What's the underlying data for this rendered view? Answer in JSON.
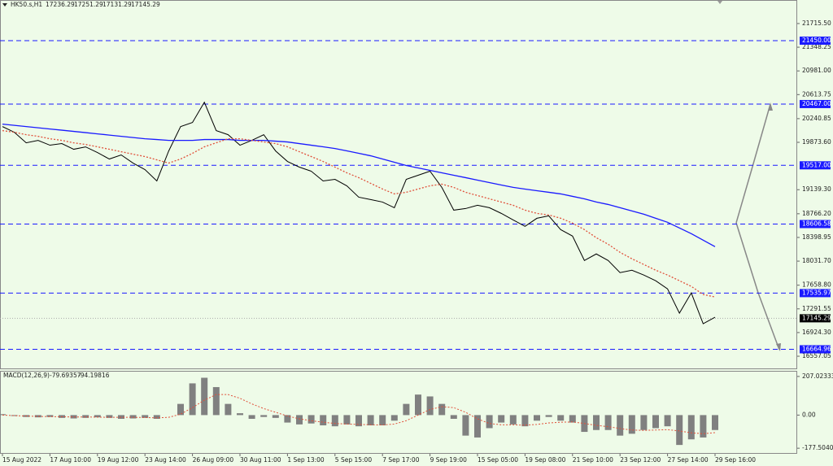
{
  "chart_data": [
    {
      "type": "line",
      "symbol": "HK50.s,H1",
      "ohlc": [
        17236.29,
        17251.29,
        17131.29,
        17145.29
      ],
      "categories": [
        "15 Aug 2022",
        null,
        null,
        null,
        "17 Aug 10:00",
        null,
        null,
        null,
        "19 Aug 12:00",
        null,
        null,
        null,
        "23 Aug 14:00",
        null,
        null,
        null,
        "26 Aug 09:00",
        null,
        null,
        null,
        "30 Aug 11:00",
        null,
        null,
        null,
        "1 Sep 13:00",
        null,
        null,
        null,
        "5 Sep 15:00",
        null,
        null,
        null,
        "7 Sep 17:00",
        null,
        null,
        null,
        "9 Sep 19:00",
        null,
        null,
        null,
        "15 Sep 05:00",
        null,
        null,
        null,
        "19 Sep 08:00",
        null,
        null,
        null,
        "21 Sep 10:00",
        null,
        null,
        null,
        "23 Sep 12:00",
        null,
        null,
        null,
        "27 Sep 14:00",
        null,
        null,
        null,
        "29 Sep 16:00"
      ],
      "series": [
        {
          "color": "#000000",
          "values": [
            20118,
            20030,
            19866,
            19904,
            19829,
            19854,
            19766,
            19803,
            19715,
            19615,
            19678,
            19552,
            19451,
            19275,
            19740,
            20118,
            20181,
            20495,
            20055,
            19992,
            19829,
            19904,
            19992,
            19740,
            19577,
            19489,
            19426,
            19275,
            19300,
            19199,
            19023,
            18986,
            18948,
            18860,
            19300,
            19363,
            19426,
            19174,
            18822,
            18847,
            18898,
            18860,
            18772,
            18671,
            18571,
            18696,
            18734,
            18520,
            18420,
            18042,
            18143,
            18042,
            17853,
            17891,
            17816,
            17728,
            17602,
            17225,
            17539,
            17061,
            17162
          ]
        },
        {
          "color": "#1a1aff",
          "values": [
            20156,
            20137,
            20118,
            20099,
            20080,
            20062,
            20043,
            20024,
            20005,
            19986,
            19967,
            19948,
            19929,
            19917,
            19904,
            19904,
            19904,
            19917,
            19917,
            19917,
            19904,
            19904,
            19904,
            19892,
            19879,
            19854,
            19829,
            19804,
            19778,
            19741,
            19703,
            19665,
            19615,
            19565,
            19514,
            19476,
            19439,
            19401,
            19363,
            19326,
            19288,
            19250,
            19212,
            19175,
            19149,
            19124,
            19099,
            19074,
            19036,
            18998,
            18948,
            18910,
            18860,
            18810,
            18759,
            18697,
            18634,
            18546,
            18458,
            18357,
            18256
          ]
        },
        {
          "color": "#e0503a",
          "dashed": true,
          "values": [
            20055,
            20030,
            19992,
            19967,
            19929,
            19904,
            19866,
            19841,
            19804,
            19766,
            19728,
            19690,
            19653,
            19602,
            19552,
            19615,
            19703,
            19804,
            19866,
            19929,
            19929,
            19904,
            19879,
            19854,
            19804,
            19728,
            19653,
            19577,
            19489,
            19401,
            19326,
            19238,
            19150,
            19074,
            19099,
            19150,
            19200,
            19225,
            19175,
            19099,
            19049,
            18998,
            18948,
            18898,
            18822,
            18772,
            18747,
            18697,
            18621,
            18520,
            18395,
            18294,
            18168,
            18068,
            17980,
            17891,
            17816,
            17728,
            17640,
            17514,
            17476
          ]
        }
      ],
      "ylim": [
        16368.3,
        22067.8
      ],
      "yticks": [
        {
          "value": 21715.5,
          "label": "21715.50"
        },
        21348.25,
        {
          "value": 20981,
          "label": "20981.00"
        },
        20613.75,
        20240.85,
        {
          "value": 19873.6,
          "label": "19873.60"
        },
        {
          "value": 19139.3,
          "label": "19139.30"
        },
        {
          "value": 18766.2,
          "label": "18766.20"
        },
        18398.95,
        {
          "value": 18031.7,
          "label": "18031.70"
        },
        {
          "value": 17658.8,
          "label": "17658.80"
        },
        17291.55,
        {
          "value": 16924.3,
          "label": "16924.30"
        },
        16557.05
      ],
      "levels": [
        {
          "value": 21450,
          "label": "21450.00"
        },
        {
          "value": 20467,
          "label": "20467.00"
        },
        {
          "value": 19517,
          "label": "19517.00"
        },
        18606.58,
        17535.97,
        16664.96
      ],
      "level_color": "#1a1aff",
      "current": 17145.29
    },
    {
      "type": "macd",
      "title": "MACD(12,26,9)",
      "macd": -79.69357,
      "signal_value": -94.19816,
      "color": "#808080",
      "signal_color": "#e0503a",
      "values": [
        5,
        -5,
        -10,
        -12,
        -10,
        -15,
        -18,
        -15,
        -12,
        -15,
        -20,
        -18,
        -15,
        -20,
        0,
        60,
        170,
        200,
        150,
        60,
        10,
        -20,
        -10,
        -15,
        -40,
        -50,
        -45,
        -55,
        -60,
        -50,
        -60,
        -55,
        -55,
        -30,
        60,
        110,
        100,
        60,
        -20,
        -110,
        -120,
        -70,
        -40,
        -50,
        -60,
        -30,
        -10,
        -30,
        -40,
        -90,
        -80,
        -80,
        -110,
        -100,
        -80,
        -70,
        -60,
        -160,
        -130,
        -120,
        -80
      ],
      "signal": [
        0,
        -3,
        -5,
        -7,
        -8,
        -9,
        -10,
        -10,
        -11,
        -12,
        -12,
        -12,
        -13,
        -15,
        -12,
        5,
        40,
        80,
        110,
        110,
        90,
        60,
        35,
        15,
        -5,
        -20,
        -30,
        -38,
        -45,
        -48,
        -50,
        -52,
        -53,
        -48,
        -30,
        0,
        30,
        45,
        40,
        15,
        -20,
        -45,
        -52,
        -52,
        -54,
        -50,
        -42,
        -38,
        -37,
        -45,
        -55,
        -62,
        -72,
        -80,
        -82,
        -80,
        -78,
        -85,
        -95,
        -100,
        -94
      ],
      "ylim": [
        -207.4,
        232.7
      ],
      "yticks": [
        207.02333,
        {
          "value": 0,
          "label": "0.00"
        },
        -177.50405
      ]
    }
  ]
}
